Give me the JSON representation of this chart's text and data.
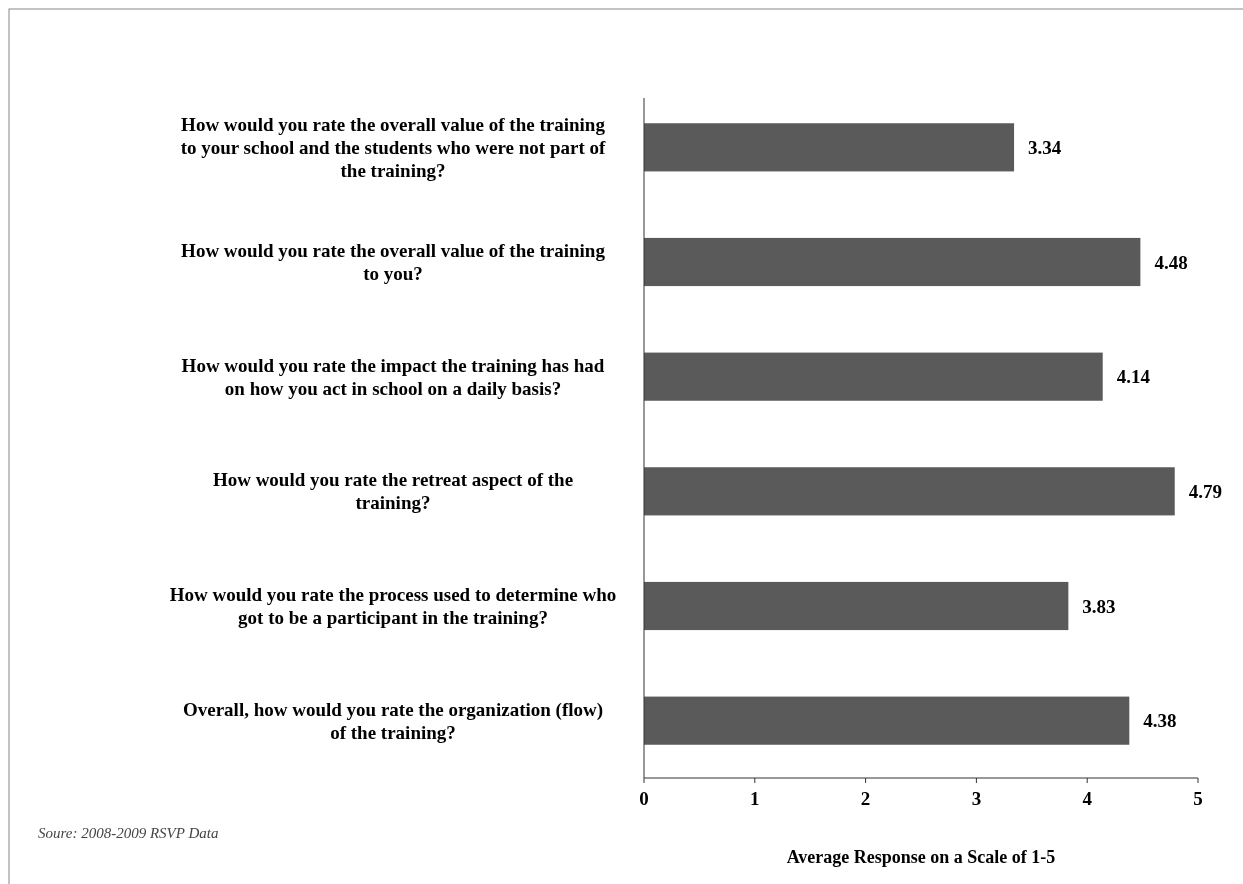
{
  "chart_data": {
    "type": "bar",
    "orientation": "horizontal",
    "categories": [
      "How would you rate the overall value of the training to your school and the students who were not part of the training?",
      "How would you rate the overall value of the training to you?",
      "How would you rate the impact the training has had on how you act in school on a daily basis?",
      "How would you rate the retreat aspect of the training?",
      "How would you rate the process used to determine who got to be a participant in the training?",
      "Overall, how would you rate the organization (flow) of the training?"
    ],
    "values": [
      3.34,
      4.48,
      4.14,
      4.79,
      3.83,
      4.38
    ],
    "color": "#5a5a5a",
    "xlim": [
      0,
      5
    ],
    "xticks": [
      0,
      1,
      2,
      3,
      4,
      5
    ],
    "xlabel": "Average Response on a Scale of 1-5",
    "data_labels": true,
    "annotations": [
      "Soure: 2008-2009 RSVP Data"
    ]
  }
}
